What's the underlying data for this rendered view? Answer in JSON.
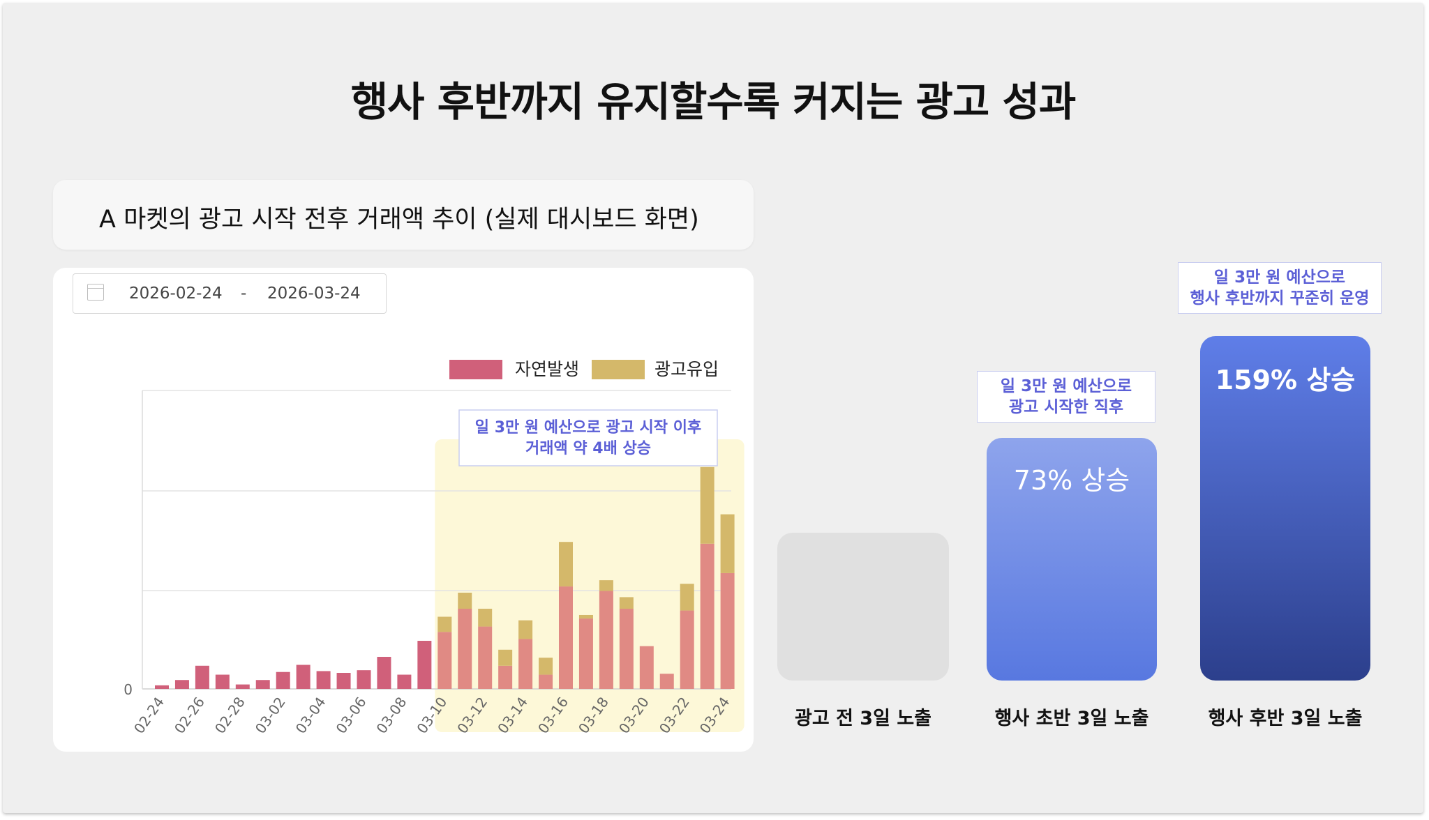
{
  "title": "행사 후반까지 유지할수록 커지는 광고 성과",
  "subtitle": "A 마켓의 광고 시작 전후 거래액 추이 (실제 대시보드 화면)",
  "date_range": {
    "start": "2026-02-24",
    "separator": "-",
    "end": "2026-03-24"
  },
  "icons": {
    "date_picker": "calendar-icon"
  },
  "colors": {
    "organic": "#d0607a",
    "organic_highlight": "#e08a84",
    "ad": "#d4b86a",
    "highlight_bg": "#fdf8d8",
    "callout_text": "#5b5fd6",
    "bar_grey": "#e0e0e0",
    "bar_mid_top": "#8ea4ec",
    "bar_mid_bottom": "#5878e0",
    "bar_late_top": "#5f7ee8",
    "bar_late_bottom": "#2c3f8c"
  },
  "chart_data": [
    {
      "type": "bar",
      "stacked": true,
      "categories": [
        "02-24",
        "02-25",
        "02-26",
        "02-27",
        "02-28",
        "03-01",
        "03-02",
        "03-03",
        "03-04",
        "03-05",
        "03-06",
        "03-07",
        "03-08",
        "03-09",
        "03-10",
        "03-11",
        "03-12",
        "03-13",
        "03-14",
        "03-15",
        "03-16",
        "03-17",
        "03-18",
        "03-19",
        "03-20",
        "03-21",
        "03-22",
        "03-23",
        "03-24"
      ],
      "tick_labels": [
        "02-24",
        "02-26",
        "02-28",
        "03-02",
        "03-04",
        "03-06",
        "03-08",
        "03-10",
        "03-12",
        "03-14",
        "03-16",
        "03-18",
        "03-20",
        "03-22",
        "03-24"
      ],
      "series": [
        {
          "name": "자연발생",
          "values": [
            4,
            10,
            26,
            16,
            5,
            10,
            19,
            27,
            20,
            18,
            21,
            36,
            16,
            54,
            64,
            90,
            70,
            26,
            56,
            16,
            115,
            79,
            110,
            90,
            48,
            17,
            88,
            163,
            130
          ]
        },
        {
          "name": "광고유입",
          "values": [
            0,
            0,
            0,
            0,
            0,
            0,
            0,
            0,
            0,
            0,
            0,
            0,
            0,
            0,
            17,
            18,
            20,
            18,
            21,
            19,
            50,
            4,
            12,
            13,
            0,
            0,
            30,
            86,
            66
          ]
        }
      ],
      "y_tick_label": "0",
      "ylim": [
        0,
        335
      ],
      "grid": true,
      "legend": "top-right",
      "annotation": [
        "일 3만 원 예산으로 광고 시작 이후",
        "거래액 약 4배 상승"
      ],
      "highlight_range": [
        "03-10",
        "03-24"
      ]
    },
    {
      "type": "bar",
      "categories": [
        "광고 전 3일 노출",
        "행사 초반 3일 노출",
        "행사 후반 3일 노출"
      ],
      "values": [
        1.0,
        1.73,
        2.59
      ],
      "value_labels": [
        "",
        "73% 상승",
        "159% 상승"
      ],
      "annotations": [
        {
          "category": "행사 초반 3일 노출",
          "lines": [
            "일 3만 원 예산으로",
            "광고 시작한 직후"
          ]
        },
        {
          "category": "행사 후반 3일 노출",
          "lines": [
            "일 3만 원 예산으로",
            "행사 후반까지 꾸준히 운영"
          ]
        }
      ]
    }
  ]
}
